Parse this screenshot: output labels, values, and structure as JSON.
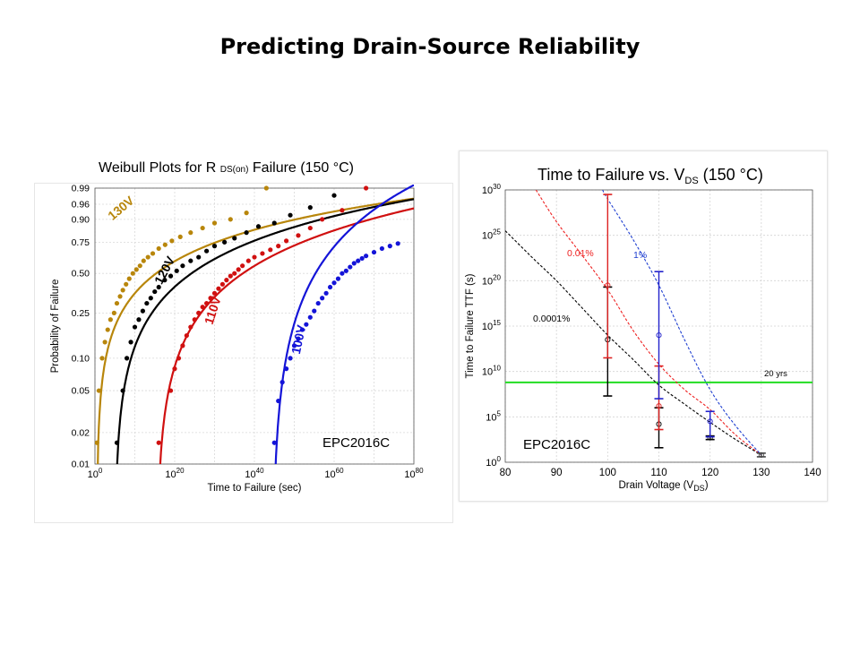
{
  "page": {
    "title": "Predicting Drain-Source Reliability"
  },
  "chart_data": [
    {
      "type": "scatter",
      "title_parts": [
        "Weibull  Plots for R",
        "DS(on)",
        "Failure (150   °C)"
      ],
      "xlabel": "Time to Failure (sec)",
      "ylabel": "Probability of Failure",
      "x_scale": "log",
      "xlim_exp": [
        0,
        80
      ],
      "x_ticks": [
        {
          "base": "10",
          "exp": "0",
          "value_exp": 0
        },
        {
          "base": "10",
          "exp": "20",
          "value_exp": 20
        },
        {
          "base": "10",
          "exp": "40",
          "value_exp": 40
        },
        {
          "base": "10",
          "exp": "60",
          "value_exp": 60
        },
        {
          "base": "10",
          "exp": "80",
          "value_exp": 80
        }
      ],
      "y_scale": "weibull",
      "y_ticks": [
        "0.01",
        "0.02",
        "0.05",
        "0.10",
        "0.25",
        "0.50",
        "0.75",
        "0.90",
        "0.96",
        "0.99"
      ],
      "grid": true,
      "annotation": "EPC2016C",
      "series": [
        {
          "name": "130V",
          "color": "#B8860B",
          "location_exp": 22,
          "shape": 0.45,
          "shift_exp": 0.5,
          "points_x_exp": [
            0.5,
            1.0,
            1.8,
            2.5,
            3.2,
            3.9,
            4.8,
            5.5,
            6.3,
            7.0,
            7.8,
            8.6,
            9.5,
            10.4,
            11.3,
            12.2,
            13.3,
            14.5,
            16,
            17.6,
            19.3,
            21.4,
            24,
            27,
            30,
            34,
            38,
            43
          ],
          "points_p": [
            0.016,
            0.05,
            0.1,
            0.14,
            0.18,
            0.22,
            0.25,
            0.3,
            0.34,
            0.38,
            0.42,
            0.46,
            0.5,
            0.53,
            0.56,
            0.6,
            0.63,
            0.66,
            0.7,
            0.73,
            0.76,
            0.79,
            0.82,
            0.85,
            0.88,
            0.9,
            0.93,
            0.99
          ]
        },
        {
          "name": "120V",
          "color": "#000000",
          "location_exp": 31,
          "shape": 0.55,
          "shift_exp": 5,
          "points_x_exp": [
            5.5,
            7,
            8,
            9,
            10,
            11,
            12,
            13,
            14,
            15,
            16,
            17.5,
            19,
            20.5,
            22,
            24,
            26,
            28,
            30,
            32.5,
            35,
            38,
            41,
            45,
            49,
            54,
            60
          ],
          "points_p": [
            0.016,
            0.05,
            0.1,
            0.14,
            0.19,
            0.22,
            0.26,
            0.3,
            0.33,
            0.37,
            0.4,
            0.45,
            0.48,
            0.52,
            0.56,
            0.6,
            0.63,
            0.68,
            0.72,
            0.75,
            0.78,
            0.82,
            0.86,
            0.88,
            0.92,
            0.95,
            0.98
          ]
        },
        {
          "name": "110V",
          "color": "#D01010",
          "location_exp": 44,
          "shape": 0.6,
          "shift_exp": 15.5,
          "points_x_exp": [
            16,
            19,
            20,
            21,
            22,
            23,
            24,
            25,
            26,
            27,
            28,
            29,
            30,
            31,
            32,
            33,
            34,
            35,
            36,
            37,
            38.5,
            40,
            42,
            44,
            46,
            48,
            51,
            54,
            57,
            62,
            68
          ],
          "points_p": [
            0.016,
            0.05,
            0.08,
            0.1,
            0.13,
            0.16,
            0.19,
            0.22,
            0.25,
            0.28,
            0.3,
            0.33,
            0.36,
            0.39,
            0.42,
            0.45,
            0.48,
            0.5,
            0.53,
            0.56,
            0.6,
            0.63,
            0.66,
            0.69,
            0.72,
            0.76,
            0.8,
            0.85,
            0.9,
            0.94,
            0.99
          ]
        },
        {
          "name": "100V",
          "color": "#1414D8",
          "location_exp": 58,
          "shape": 0.75,
          "shift_exp": 44.5,
          "points_x_exp": [
            45,
            46,
            47,
            48,
            49,
            50,
            51,
            52,
            53,
            54,
            55,
            56,
            57,
            58,
            59,
            60,
            61,
            62,
            63,
            64,
            65,
            66,
            67,
            68,
            70,
            72,
            74,
            76
          ],
          "points_p": [
            0.016,
            0.04,
            0.06,
            0.08,
            0.1,
            0.13,
            0.15,
            0.18,
            0.2,
            0.23,
            0.26,
            0.3,
            0.33,
            0.36,
            0.4,
            0.43,
            0.46,
            0.5,
            0.52,
            0.55,
            0.58,
            0.6,
            0.62,
            0.64,
            0.67,
            0.7,
            0.72,
            0.74
          ]
        }
      ]
    },
    {
      "type": "line",
      "title_parts": [
        "Time to Failure vs. V",
        "DS",
        " (150 °C)"
      ],
      "xlabel_parts": [
        "Drain Voltage (V",
        "DS",
        ")"
      ],
      "ylabel": "Time to Failure  TTF (s)",
      "xlim": [
        80,
        140
      ],
      "x_ticks": [
        "80",
        "90",
        "100",
        "110",
        "120",
        "130",
        "140"
      ],
      "y_scale": "log",
      "ylim_exp": [
        0,
        30
      ],
      "y_ticks": [
        {
          "base": "10",
          "exp": "0",
          "value_exp": 0
        },
        {
          "base": "10",
          "exp": "5",
          "value_exp": 5
        },
        {
          "base": "10",
          "exp": "10",
          "value_exp": 10
        },
        {
          "base": "10",
          "exp": "15",
          "value_exp": 15
        },
        {
          "base": "10",
          "exp": "20",
          "value_exp": 20
        },
        {
          "base": "10",
          "exp": "25",
          "value_exp": 25
        },
        {
          "base": "10",
          "exp": "30",
          "value_exp": 30
        }
      ],
      "grid": true,
      "annotation": "EPC2016C",
      "reference_line": {
        "label": "20 yrs",
        "value_exp": 8.8,
        "color": "#22DD22"
      },
      "series": [
        {
          "name": "0.0001%",
          "color": "#000000",
          "x": [
            80,
            85,
            90,
            95,
            100,
            105,
            110,
            115,
            120,
            125,
            130
          ],
          "y_exp": [
            25.5,
            22.7,
            20,
            17,
            14,
            11.3,
            8.5,
            6.4,
            4.4,
            2.5,
            0.8
          ]
        },
        {
          "name": "0.01%",
          "color": "#EE2222",
          "x": [
            86,
            90,
            95,
            100,
            105,
            110,
            115,
            120,
            125,
            130
          ],
          "y_exp": [
            30,
            26.5,
            22.8,
            19,
            14.5,
            10.8,
            8,
            5.8,
            3,
            0.8
          ]
        },
        {
          "name": "1%",
          "color": "#1F3FD0",
          "x": [
            99,
            100,
            105,
            110,
            115,
            120,
            125,
            130
          ],
          "y_exp": [
            30,
            29,
            24.5,
            19.5,
            13.5,
            8,
            4,
            0.8
          ]
        }
      ],
      "error_bars": [
        {
          "x": 100,
          "color": "#000000",
          "center_exp": 13.5,
          "low_exp": 7.3,
          "high_exp": 19.3
        },
        {
          "x": 100,
          "color": "#DD2222",
          "center_exp": 19.5,
          "low_exp": 11.5,
          "high_exp": 29.5
        },
        {
          "x": 110,
          "color": "#000000",
          "center_exp": 4.2,
          "low_exp": 1.6,
          "high_exp": 6
        },
        {
          "x": 110,
          "color": "#DD2222",
          "center_exp": 6.2,
          "low_exp": 3.6,
          "high_exp": 10.6
        },
        {
          "x": 110,
          "color": "#2222CC",
          "center_exp": 14,
          "low_exp": 7,
          "high_exp": 21
        },
        {
          "x": 120,
          "color": "#000000",
          "center_exp": 2.7,
          "low_exp": 2.5,
          "high_exp": 2.9
        },
        {
          "x": 120,
          "color": "#2222CC",
          "center_exp": 4.5,
          "low_exp": 2.8,
          "high_exp": 5.6
        },
        {
          "x": 130,
          "color": "#444444",
          "center_exp": 0.8,
          "low_exp": 0.6,
          "high_exp": 1.0
        }
      ]
    }
  ]
}
